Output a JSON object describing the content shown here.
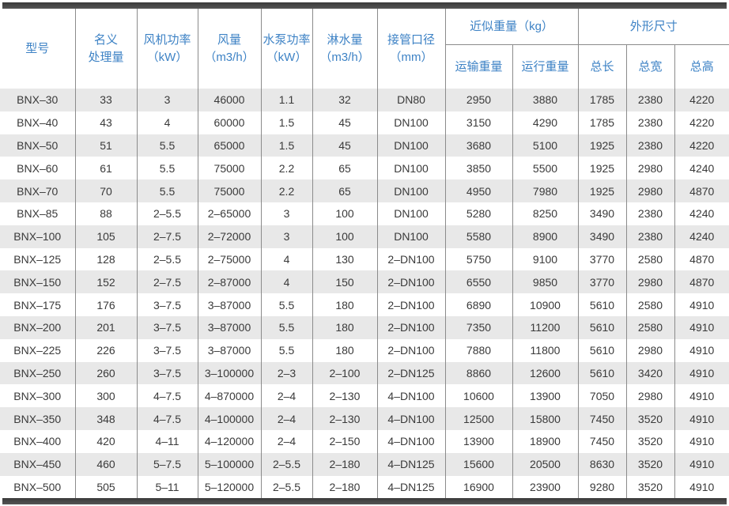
{
  "colors": {
    "header_text": "#3d82c5",
    "body_text": "#3a3a3a",
    "stripe": "#e8e8e8",
    "frame_bar": "#4a4a4a",
    "grid_line": "#8b8b8b"
  },
  "table": {
    "header": {
      "model": "型号",
      "nominal_capacity": "名义\n处理量",
      "fan_power": "风机功率\n（kW）",
      "air_volume": "风量\n（m3/h）",
      "pump_power": "水泵功率\n（kW）",
      "spray_water": "淋水量\n（m3/h）",
      "pipe_diameter": "接管口径\n（mm）",
      "approx_weight_group": "近似重量（kg）",
      "dimensions_group": "外形尺寸",
      "transport_weight": "运输重量",
      "operating_weight": "运行重量",
      "total_length": "总长",
      "total_width": "总宽",
      "total_height": "总高"
    },
    "rows": [
      [
        "BNX–30",
        "33",
        "3",
        "46000",
        "1.1",
        "32",
        "DN80",
        "2950",
        "3880",
        "1785",
        "2380",
        "4220"
      ],
      [
        "BNX–40",
        "43",
        "4",
        "60000",
        "1.5",
        "45",
        "DN100",
        "3150",
        "4290",
        "1785",
        "2380",
        "4220"
      ],
      [
        "BNX–50",
        "51",
        "5.5",
        "65000",
        "1.5",
        "45",
        "DN100",
        "3680",
        "5100",
        "1925",
        "2380",
        "4220"
      ],
      [
        "BNX–60",
        "61",
        "5.5",
        "75000",
        "2.2",
        "65",
        "DN100",
        "3850",
        "5500",
        "1925",
        "2980",
        "4240"
      ],
      [
        "BNX–70",
        "70",
        "5.5",
        "75000",
        "2.2",
        "65",
        "DN100",
        "4950",
        "7980",
        "1925",
        "2980",
        "4870"
      ],
      [
        "BNX–85",
        "88",
        "2–5.5",
        "2–65000",
        "3",
        "100",
        "DN100",
        "5280",
        "8250",
        "3490",
        "2380",
        "4240"
      ],
      [
        "BNX–100",
        "105",
        "2–7.5",
        "2–72000",
        "3",
        "100",
        "DN100",
        "5580",
        "8900",
        "3490",
        "2380",
        "4240"
      ],
      [
        "BNX–125",
        "128",
        "2–5.5",
        "2–75000",
        "4",
        "130",
        "2–DN100",
        "5750",
        "9100",
        "3770",
        "2580",
        "4870"
      ],
      [
        "BNX–150",
        "152",
        "2–7.5",
        "2–87000",
        "4",
        "150",
        "2–DN100",
        "6550",
        "9850",
        "3770",
        "2980",
        "4870"
      ],
      [
        "BNX–175",
        "176",
        "3–7.5",
        "3–87000",
        "5.5",
        "180",
        "2–DN100",
        "6890",
        "10900",
        "5610",
        "2580",
        "4910"
      ],
      [
        "BNX–200",
        "201",
        "3–7.5",
        "3–87000",
        "5.5",
        "180",
        "2–DN100",
        "7350",
        "11200",
        "5610",
        "2580",
        "4910"
      ],
      [
        "BNX–225",
        "226",
        "3–7.5",
        "3–87000",
        "5.5",
        "180",
        "2–DN100",
        "7880",
        "11800",
        "5610",
        "2980",
        "4910"
      ],
      [
        "BNX–250",
        "260",
        "3–7.5",
        "3–100000",
        "2–3",
        "2–100",
        "2–DN125",
        "8860",
        "12600",
        "5610",
        "3420",
        "4910"
      ],
      [
        "BNX–300",
        "300",
        "4–7.5",
        "4–870000",
        "2–4",
        "2–130",
        "4–DN100",
        "10600",
        "13900",
        "7050",
        "2980",
        "4910"
      ],
      [
        "BNX–350",
        "348",
        "4–7.5",
        "4–100000",
        "2–4",
        "2–130",
        "4–DN100",
        "12500",
        "15800",
        "7450",
        "3520",
        "4910"
      ],
      [
        "BNX–400",
        "420",
        "4–11",
        "4–120000",
        "2–4",
        "2–150",
        "4–DN100",
        "13900",
        "18900",
        "7450",
        "3520",
        "4910"
      ],
      [
        "BNX–450",
        "460",
        "5–7.5",
        "5–100000",
        "2–5.5",
        "2–180",
        "4–DN125",
        "15600",
        "20500",
        "8630",
        "3520",
        "4910"
      ],
      [
        "BNX–500",
        "505",
        "5–11",
        "5–120000",
        "2–5.5",
        "2–180",
        "4–DN125",
        "16900",
        "23900",
        "9280",
        "3520",
        "4910"
      ]
    ]
  }
}
